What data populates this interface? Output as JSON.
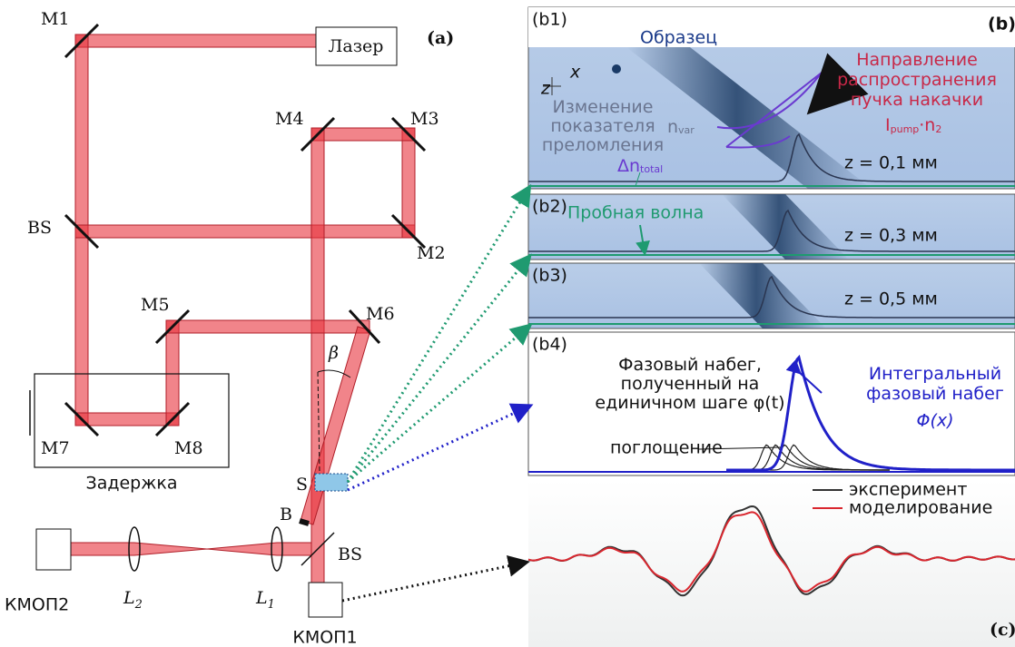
{
  "setup": {
    "label": "(a)",
    "laser": "Лазер",
    "mirrors": {
      "m1": "M1",
      "m2": "M2",
      "m3": "M3",
      "m4": "M4",
      "m5": "M5",
      "m6": "M6",
      "m7": "M7",
      "m8": "M8"
    },
    "beamsplitter_top": "BS",
    "beamsplitter_bottom": "BS",
    "delay": "Задержка",
    "sample": "S",
    "block": "B",
    "angle": "β",
    "lens1": {
      "text": "L",
      "sub": "1"
    },
    "lens2": {
      "text": "L",
      "sub": "2"
    },
    "camera1": "КМОП1",
    "camera2": "КМОП2"
  },
  "panel_b": {
    "label": "(b)",
    "b1": {
      "label": "(b1)",
      "sample": "Образец",
      "axis_z": "z",
      "axis_x": "x",
      "pump_direction": [
        "Направление",
        "распространения",
        "пучка накачки"
      ],
      "pump_term": {
        "main": "I",
        "sub": "pump",
        "mid": "·n",
        "sub2": "2"
      },
      "index_change": [
        "Изменение",
        "показателя",
        "преломления"
      ],
      "n_var": {
        "text": "n",
        "sub": "var"
      },
      "dn_total": {
        "text": "Δn",
        "sub": "total"
      },
      "depth": "z = 0,1 мм"
    },
    "b2": {
      "label": "(b2)",
      "probe": "Пробная волна",
      "depth": "z = 0,3 мм"
    },
    "b3": {
      "label": "(b3)",
      "depth": "z = 0,5 мм"
    },
    "b4": {
      "label": "(b4)",
      "step_phase": [
        "Фазовый набег,",
        "полученный на",
        "единичном шаге φ(t)"
      ],
      "integral": [
        "Интегральный",
        "фазовый набег"
      ],
      "integral_symbol": "Φ(x)",
      "absorption": "поглощение"
    }
  },
  "panel_c": {
    "label": "(c)",
    "legend": [
      {
        "name": "эксперимент",
        "color": "#333333"
      },
      {
        "name": "моделирование",
        "color": "#d9262e"
      }
    ]
  }
}
